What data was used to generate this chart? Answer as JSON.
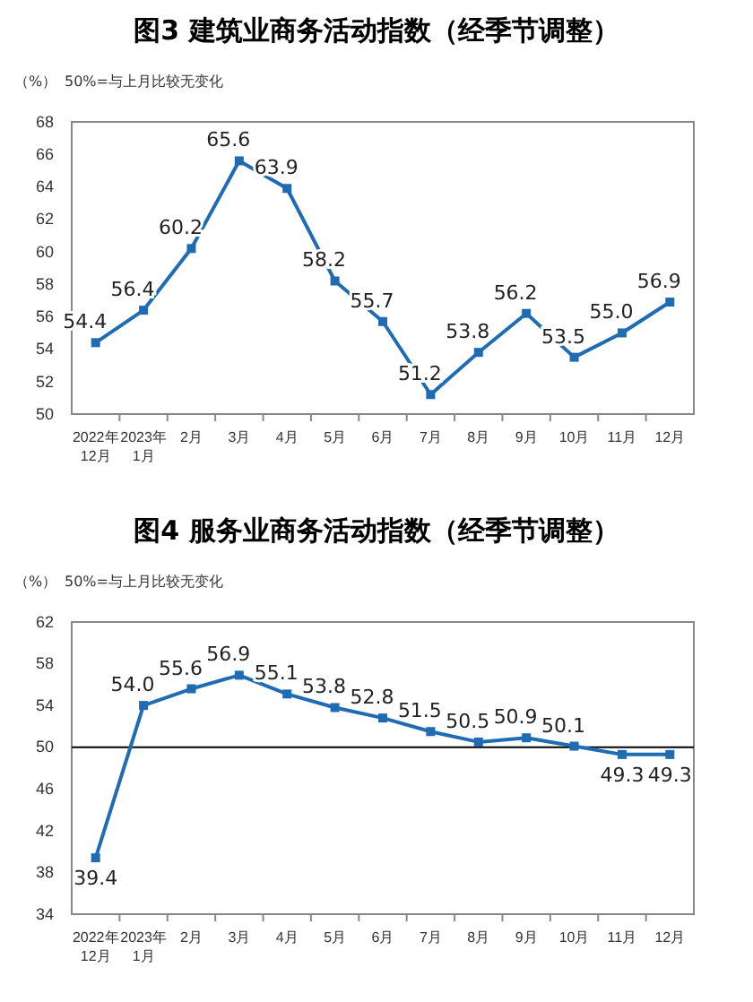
{
  "chart_data": [
    {
      "type": "line",
      "title": "图3  建筑业商务活动指数（经季节调整）",
      "ylabel": "（%）",
      "annotations": [
        "50%=与上月比较无变化"
      ],
      "categories": [
        "2022年\n12月",
        "2023年\n1月",
        "2月",
        "3月",
        "4月",
        "5月",
        "6月",
        "7月",
        "8月",
        "9月",
        "10月",
        "11月",
        "12月"
      ],
      "series": [
        {
          "color": "#1f6cb4",
          "values": [
            54.4,
            56.4,
            60.2,
            65.6,
            63.9,
            58.2,
            55.7,
            51.2,
            53.8,
            56.2,
            53.5,
            55.0,
            56.9
          ],
          "value_labels": [
            "54.4",
            "56.4",
            "60.2",
            "65.6",
            "63.9",
            "58.2",
            "55.7",
            "51.2",
            "53.8",
            "56.2",
            "53.5",
            "55.0",
            "56.9"
          ]
        }
      ],
      "ylim": [
        50,
        68
      ],
      "yticks": [
        50,
        52,
        54,
        56,
        58,
        60,
        62,
        64,
        66,
        68
      ],
      "marker": "square",
      "line_style": "solid",
      "grid": false
    },
    {
      "type": "line",
      "title": "图4  服务业商务活动指数（经季节调整）",
      "ylabel": "（%）",
      "annotations": [
        "50%=与上月比较无变化"
      ],
      "categories": [
        "2022年\n12月",
        "2023年\n1月",
        "2月",
        "3月",
        "4月",
        "5月",
        "6月",
        "7月",
        "8月",
        "9月",
        "10月",
        "11月",
        "12月"
      ],
      "series": [
        {
          "color": "#1f6cb4",
          "values": [
            39.4,
            54.0,
            55.6,
            56.9,
            55.1,
            53.8,
            52.8,
            51.5,
            50.5,
            50.9,
            50.1,
            49.3,
            49.3
          ],
          "value_labels": [
            "39.4",
            "54.0",
            "55.6",
            "56.9",
            "55.1",
            "53.8",
            "52.8",
            "51.5",
            "50.5",
            "50.9",
            "50.1",
            "49.3",
            "49.3"
          ]
        }
      ],
      "ylim": [
        34,
        62
      ],
      "yticks": [
        34,
        38,
        42,
        46,
        50,
        54,
        58,
        62
      ],
      "ref_lines": [
        {
          "axis": "y",
          "value": 50,
          "color": "#000000"
        }
      ],
      "marker": "square",
      "line_style": "solid",
      "grid": false
    }
  ]
}
